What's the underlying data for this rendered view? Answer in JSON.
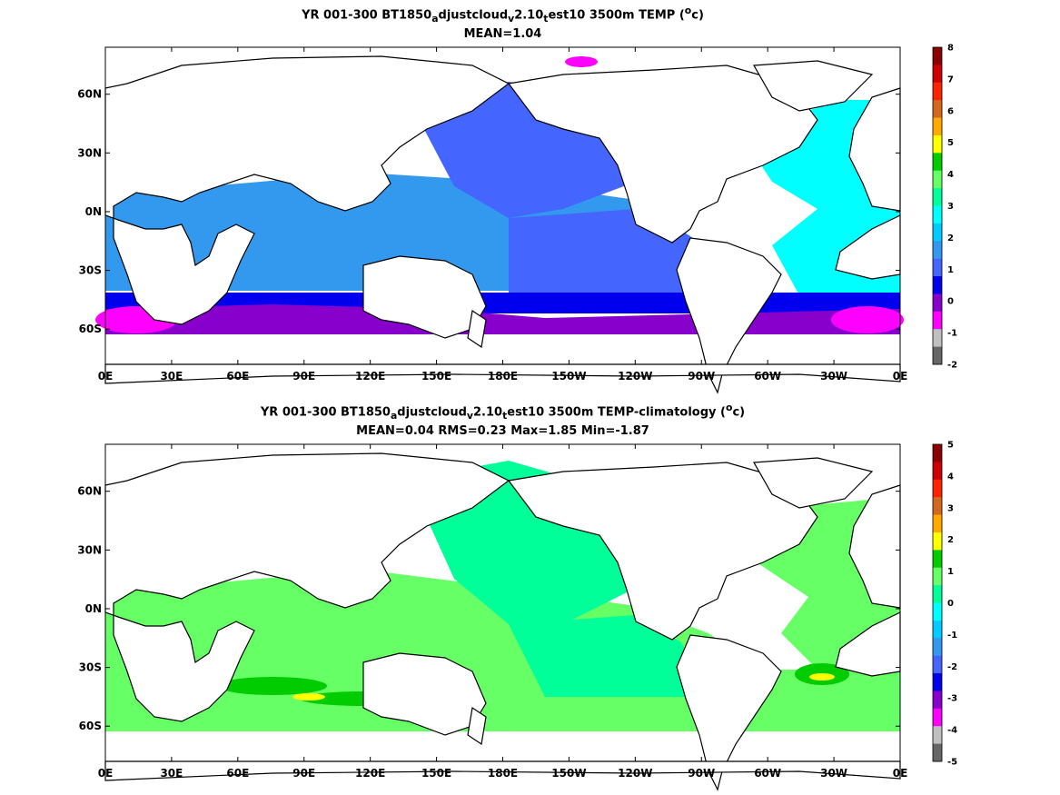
{
  "chart_data": [
    {
      "type": "heatmap",
      "title": "YR 001-300 BT1850",
      "title_parts": {
        "pre": "YR 001-300 BT1850",
        "sub_a": "a",
        "mid1": "djustcloud",
        "sub_v": "v",
        "mid2": "2.10",
        "sub_t": "t",
        "tail": "est10 3500m TEMP (",
        "sup": "o",
        "unit": "c)"
      },
      "subtitle": "MEAN=1.04",
      "x_ticks": [
        "0E",
        "30E",
        "60E",
        "90E",
        "120E",
        "150E",
        "180E",
        "150W",
        "120W",
        "90W",
        "60W",
        "30W",
        "0E"
      ],
      "y_ticks": [
        "60N",
        "30N",
        "0N",
        "30S",
        "60S"
      ],
      "colorbar_ticks": [
        "8",
        "7",
        "6",
        "5",
        "4",
        "3",
        "2",
        "1",
        "0",
        "-1",
        "-2"
      ],
      "colorbar_colors": [
        "#8b0000",
        "#cc0000",
        "#ff2200",
        "#d2691e",
        "#ffaa00",
        "#ffff00",
        "#00cc00",
        "#66ff66",
        "#00ff99",
        "#00ffff",
        "#00ccff",
        "#3399ee",
        "#4466ff",
        "#0000ee",
        "#8800cc",
        "#ff00ff",
        "#c0c0c0",
        "#666666"
      ],
      "color_scale": [
        -2,
        8
      ],
      "dominant_values": {
        "pacific_north_central": 1.5,
        "atlantic_north": 2.5,
        "indian_and_south_pacific": 1.5,
        "southern_ocean_band": 0,
        "antarctic_margin": -1
      },
      "units": "°c"
    },
    {
      "type": "heatmap",
      "title": "YR 001-300 BT1850",
      "title_parts": {
        "pre": "YR 001-300 BT1850",
        "sub_a": "a",
        "mid1": "djustcloud",
        "sub_v": "v",
        "mid2": "2.10",
        "sub_t": "t",
        "tail": "est10 3500m TEMP-climatology (",
        "sup": "o",
        "unit": "c)"
      },
      "subtitle": "MEAN=0.04   RMS=0.23   Max=1.85   Min=-1.87",
      "x_ticks": [
        "0E",
        "30E",
        "60E",
        "90E",
        "120E",
        "150E",
        "180E",
        "150W",
        "120W",
        "90W",
        "60W",
        "30W",
        "0E"
      ],
      "y_ticks": [
        "60N",
        "30N",
        "0N",
        "30S",
        "60S"
      ],
      "colorbar_ticks": [
        "5",
        "4",
        "3",
        "2",
        "1",
        "0",
        "-1",
        "-2",
        "-3",
        "-4",
        "-5"
      ],
      "colorbar_colors": [
        "#8b0000",
        "#cc0000",
        "#ff2200",
        "#d2691e",
        "#ffaa00",
        "#ffff00",
        "#00cc00",
        "#66ff66",
        "#00ff99",
        "#00ffff",
        "#00ccff",
        "#3399ee",
        "#4466ff",
        "#0000ee",
        "#8800cc",
        "#ff00ff",
        "#c0c0c0",
        "#666666"
      ],
      "color_scale": [
        -5,
        5
      ],
      "dominant_values": {
        "pacific_north_central": -0.25,
        "atlantic_north": 0.25,
        "indian_and_south_pacific": 0.25,
        "southern_ocean_band": 0.75,
        "agulhas_hotspot": 1.75
      },
      "units": "°c"
    }
  ],
  "colors": {
    "land": "#ffffff",
    "coast": "#000000",
    "top_pacific": "#4466ff",
    "top_atlantic": "#00ffff",
    "top_mid": "#3399ee",
    "top_blue": "#0000ee",
    "top_purple": "#8800cc",
    "top_magenta": "#ff00ff",
    "bot_mint": "#00ff99",
    "bot_light": "#66ff66",
    "bot_green": "#00cc00",
    "bot_yellow": "#ffff00"
  }
}
